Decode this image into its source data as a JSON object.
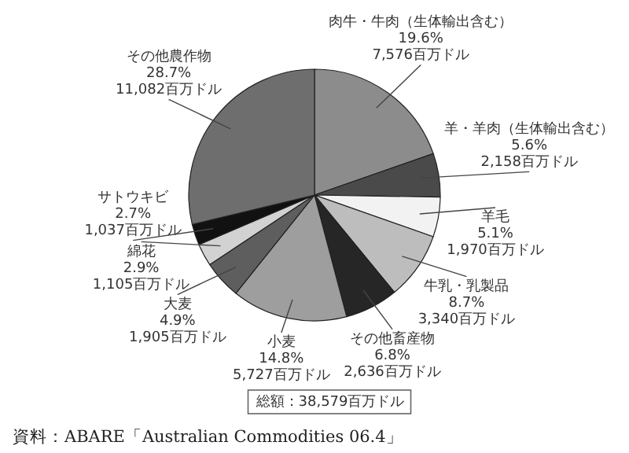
{
  "chart_data": {
    "type": "pie",
    "categories": [
      "肉牛・牛肉（生体輸出含む）",
      "羊・羊肉（生体輸出含む）",
      "羊毛",
      "牛乳・乳製品",
      "その他畜産物",
      "小麦",
      "大麦",
      "綿花",
      "サトウキビ",
      "その他農作物"
    ],
    "values": [
      7576,
      2158,
      1970,
      3340,
      2636,
      5727,
      1905,
      1105,
      1037,
      11082
    ],
    "value_labels": [
      "19.6%\n7,576百万ドル",
      "5.6%\n2,158百万ドル",
      "5.1%\n1,970百万ドル",
      "8.7%\n3,340百万ドル",
      "6.8%\n2,636百万ドル",
      "14.8%\n5,727百万ドル",
      "4.9%\n1,905百万ドル",
      "2.9%\n1,105百万ドル",
      "2.7%\n1,037百万ドル",
      "28.7%\n11,082百万ドル"
    ],
    "colors": [
      "#8c8c8c",
      "#4a4a4a",
      "#f2f2f2",
      "#bdbdbd",
      "#262626",
      "#9e9e9e",
      "#5e5e5e",
      "#d2d2d2",
      "#111111",
      "#6e6e6e"
    ],
    "annotations": [
      "総額：38,579百万ドル",
      "資料：ABARE「Australian Commodities 06.4」"
    ]
  }
}
